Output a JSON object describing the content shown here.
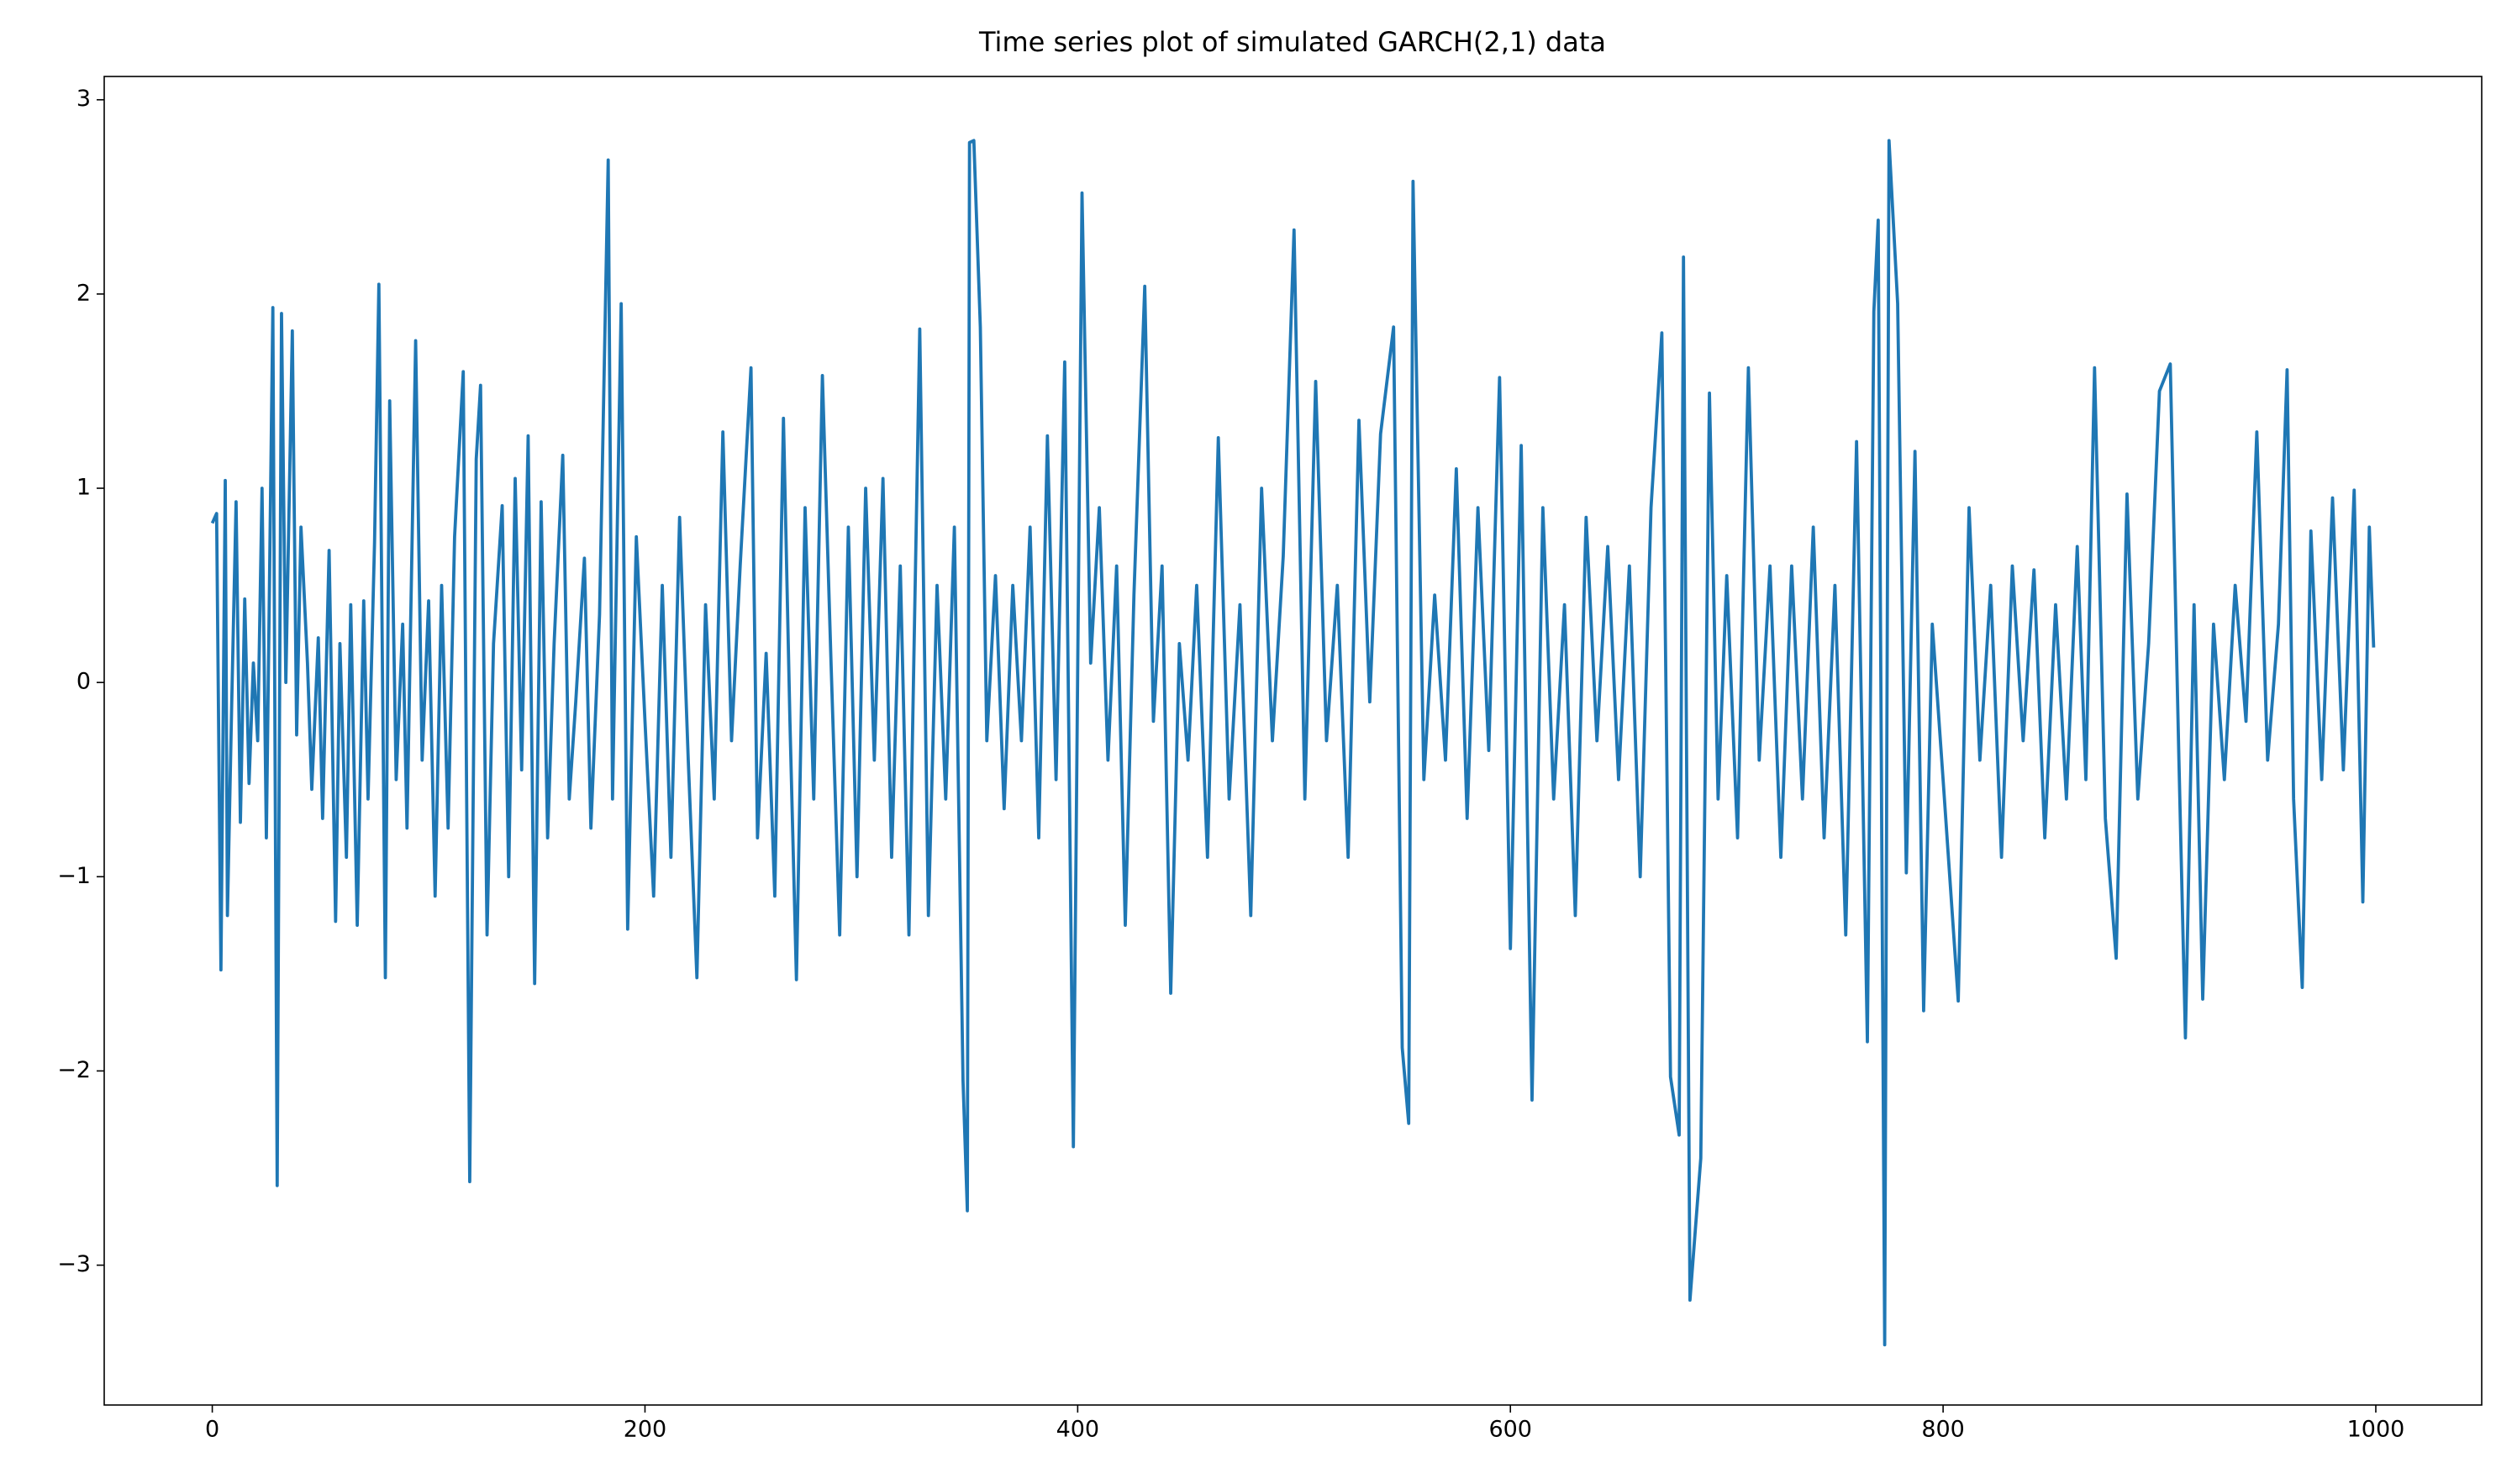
{
  "chart_data": {
    "type": "line",
    "title": "Time series plot of simulated GARCH(2,1) data",
    "x": [
      0,
      2,
      4,
      6,
      7,
      9,
      11,
      13,
      15,
      17,
      19,
      21,
      23,
      25,
      28,
      30,
      32,
      34,
      37,
      39,
      41,
      44,
      46,
      49,
      51,
      54,
      57,
      59,
      62,
      64,
      67,
      70,
      72,
      75,
      77,
      80,
      82,
      85,
      88,
      90,
      94,
      97,
      100,
      103,
      106,
      109,
      112,
      116,
      119,
      122,
      124,
      127,
      130,
      134,
      137,
      140,
      143,
      146,
      149,
      152,
      155,
      158,
      162,
      165,
      168,
      172,
      175,
      179,
      183,
      185,
      189,
      192,
      196,
      200,
      204,
      208,
      212,
      216,
      220,
      224,
      228,
      232,
      236,
      240,
      244,
      249,
      252,
      256,
      260,
      264,
      267,
      270,
      274,
      278,
      282,
      286,
      290,
      294,
      298,
      302,
      306,
      310,
      314,
      318,
      322,
      327,
      331,
      335,
      339,
      343,
      347,
      349,
      350,
      352,
      355,
      358,
      362,
      366,
      370,
      374,
      378,
      382,
      386,
      390,
      394,
      398,
      402,
      406,
      410,
      414,
      418,
      422,
      426,
      431,
      435,
      439,
      443,
      447,
      451,
      455,
      460,
      465,
      470,
      475,
      480,
      485,
      490,
      495,
      500,
      505,
      510,
      515,
      520,
      525,
      530,
      535,
      540,
      546,
      550,
      553,
      555,
      560,
      565,
      570,
      575,
      580,
      585,
      590,
      595,
      600,
      605,
      610,
      615,
      620,
      625,
      630,
      635,
      640,
      645,
      650,
      655,
      660,
      665,
      670,
      674,
      678,
      680,
      683,
      688,
      692,
      696,
      700,
      705,
      710,
      715,
      720,
      725,
      730,
      735,
      740,
      745,
      750,
      755,
      760,
      765,
      768,
      770,
      773,
      775,
      779,
      783,
      787,
      791,
      795,
      800,
      807,
      812,
      817,
      822,
      827,
      832,
      837,
      842,
      847,
      852,
      857,
      862,
      866,
      870,
      875,
      880,
      885,
      890,
      895,
      900,
      905,
      909,
      912,
      916,
      920,
      925,
      930,
      935,
      940,
      945,
      950,
      955,
      959,
      962,
      966,
      970,
      975,
      980,
      985,
      990,
      994,
      997,
      999
    ],
    "series": [
      {
        "color": "#1f77b4",
        "values": [
          0.82,
          0.87,
          -1.48,
          1.04,
          -1.2,
          -0.1,
          0.93,
          -0.72,
          0.43,
          -0.52,
          0.1,
          -0.3,
          1.0,
          -0.8,
          1.93,
          -2.59,
          1.9,
          0.0,
          1.81,
          -0.27,
          0.8,
          0.1,
          -0.55,
          0.23,
          -0.7,
          0.68,
          -1.23,
          0.2,
          -0.9,
          0.4,
          -1.25,
          0.42,
          -0.6,
          0.72,
          2.05,
          -1.52,
          1.45,
          -0.5,
          0.3,
          -0.75,
          1.76,
          -0.4,
          0.42,
          -1.1,
          0.5,
          -0.75,
          0.75,
          1.6,
          -2.57,
          1.15,
          1.53,
          -1.3,
          0.2,
          0.91,
          -1.0,
          1.05,
          -0.45,
          1.27,
          -1.55,
          0.93,
          -0.8,
          0.2,
          1.17,
          -0.6,
          -0.1,
          0.64,
          -0.75,
          0.35,
          2.69,
          -0.6,
          1.95,
          -1.27,
          0.75,
          -0.2,
          -1.1,
          0.5,
          -0.9,
          0.85,
          -0.4,
          -1.52,
          0.4,
          -0.6,
          1.29,
          -0.3,
          0.6,
          1.62,
          -0.8,
          0.15,
          -1.1,
          1.36,
          -0.2,
          -1.53,
          0.9,
          -0.6,
          1.58,
          0.1,
          -1.3,
          0.8,
          -1.0,
          1.0,
          -0.4,
          1.05,
          -0.9,
          0.6,
          -1.3,
          1.82,
          -1.2,
          0.5,
          -0.6,
          0.8,
          -2.05,
          -2.72,
          2.78,
          2.79,
          1.83,
          -0.3,
          0.55,
          -0.65,
          0.5,
          -0.3,
          0.8,
          -0.8,
          1.27,
          -0.5,
          1.65,
          -2.39,
          2.52,
          0.1,
          0.9,
          -0.4,
          0.6,
          -1.25,
          0.45,
          2.04,
          -0.2,
          0.6,
          -1.6,
          0.2,
          -0.4,
          0.5,
          -0.9,
          1.26,
          -0.6,
          0.4,
          -1.2,
          1.0,
          -0.3,
          0.65,
          2.33,
          -0.6,
          1.55,
          -0.3,
          0.5,
          -0.9,
          1.35,
          -0.1,
          1.28,
          1.83,
          -1.88,
          -2.27,
          2.58,
          -0.5,
          0.45,
          -0.4,
          1.1,
          -0.7,
          0.9,
          -0.35,
          1.57,
          -1.37,
          1.22,
          -2.15,
          0.9,
          -0.6,
          0.4,
          -1.2,
          0.85,
          -0.3,
          0.7,
          -0.5,
          0.6,
          -1.0,
          0.9,
          1.8,
          -2.03,
          -2.33,
          2.19,
          -3.18,
          -2.45,
          1.49,
          -0.6,
          0.55,
          -0.8,
          1.62,
          -0.4,
          0.6,
          -0.9,
          0.6,
          -0.6,
          0.8,
          -0.8,
          0.5,
          -1.3,
          1.24,
          -1.85,
          1.91,
          2.38,
          -3.41,
          2.79,
          1.95,
          -0.98,
          1.19,
          -1.69,
          0.3,
          -0.5,
          -1.64,
          0.9,
          -0.4,
          0.5,
          -0.9,
          0.6,
          -0.3,
          0.58,
          -0.8,
          0.4,
          -0.6,
          0.7,
          -0.5,
          1.62,
          -0.7,
          -1.42,
          0.97,
          -0.6,
          0.2,
          1.5,
          1.64,
          -0.4,
          -1.83,
          0.4,
          -1.63,
          0.3,
          -0.5,
          0.5,
          -0.2,
          1.29,
          -0.4,
          0.3,
          1.61,
          -0.6,
          -1.57,
          0.78,
          -0.5,
          0.95,
          -0.45,
          0.99,
          -1.13,
          0.8,
          0.18
        ]
      }
    ],
    "xlim": [
      -49.95,
      1048.95
    ],
    "xticks": [
      0,
      200,
      400,
      600,
      800,
      1000
    ],
    "ylim": [
      -3.72,
      3.12
    ],
    "yticks": [
      {
        "value": -3,
        "label": "−3"
      },
      {
        "value": -2,
        "label": "−2"
      },
      {
        "value": -1,
        "label": "−1"
      },
      0,
      1,
      2,
      3
    ],
    "grid": false
  }
}
